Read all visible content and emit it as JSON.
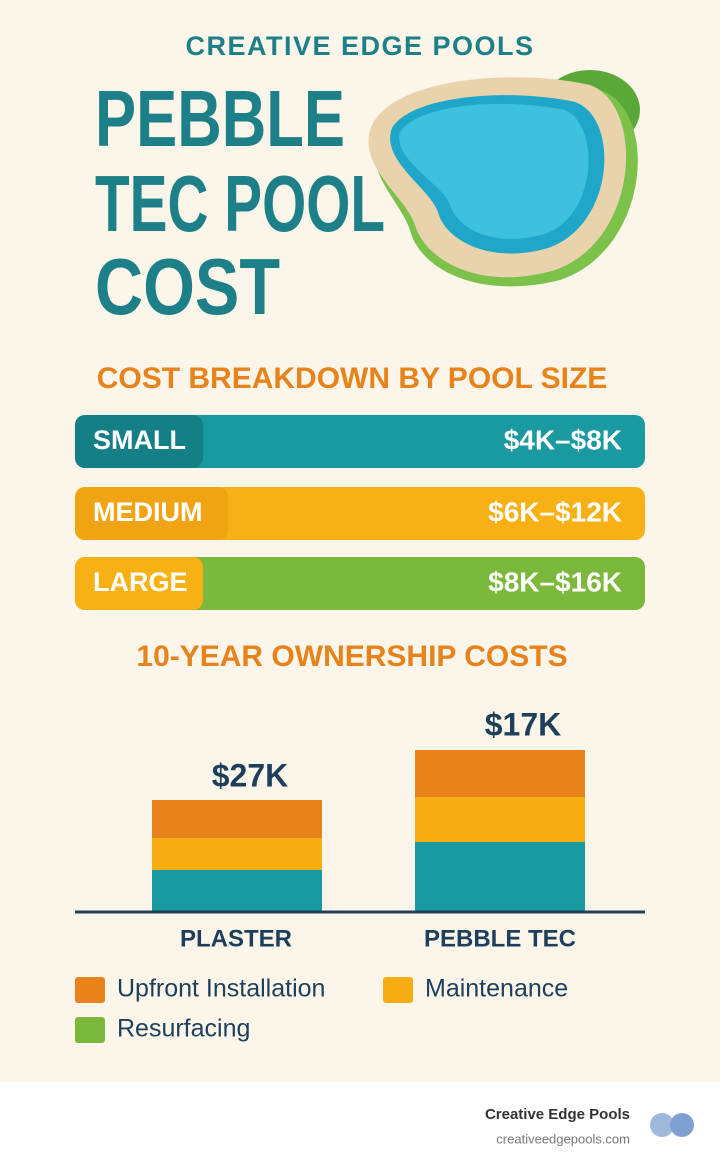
{
  "header": {
    "brand": "CREATIVE EDGE POOLS",
    "title_lines": [
      "PEBBLE",
      "TEC POOL",
      "COST"
    ]
  },
  "size_breakdown": {
    "title": "COST BREAKDOWN BY POOL SIZE",
    "rows": [
      {
        "label": "SMALL",
        "range": "$4K–$8K"
      },
      {
        "label": "MEDIUM",
        "range": "$6K–$12K"
      },
      {
        "label": "LARGE",
        "range": "$8K–$16K"
      }
    ]
  },
  "ownership": {
    "title": "10-YEAR OWNERSHIP COSTS",
    "bars": [
      {
        "label": "PLASTER",
        "total": "$27K"
      },
      {
        "label": "PEBBLE TEC",
        "total": "$17K"
      }
    ],
    "legend": [
      "Upfront Installation",
      "Maintenance",
      "Resurfacing"
    ]
  },
  "footer": {
    "name": "Creative Edge Pools",
    "url": "creativeedgepools.com"
  }
}
